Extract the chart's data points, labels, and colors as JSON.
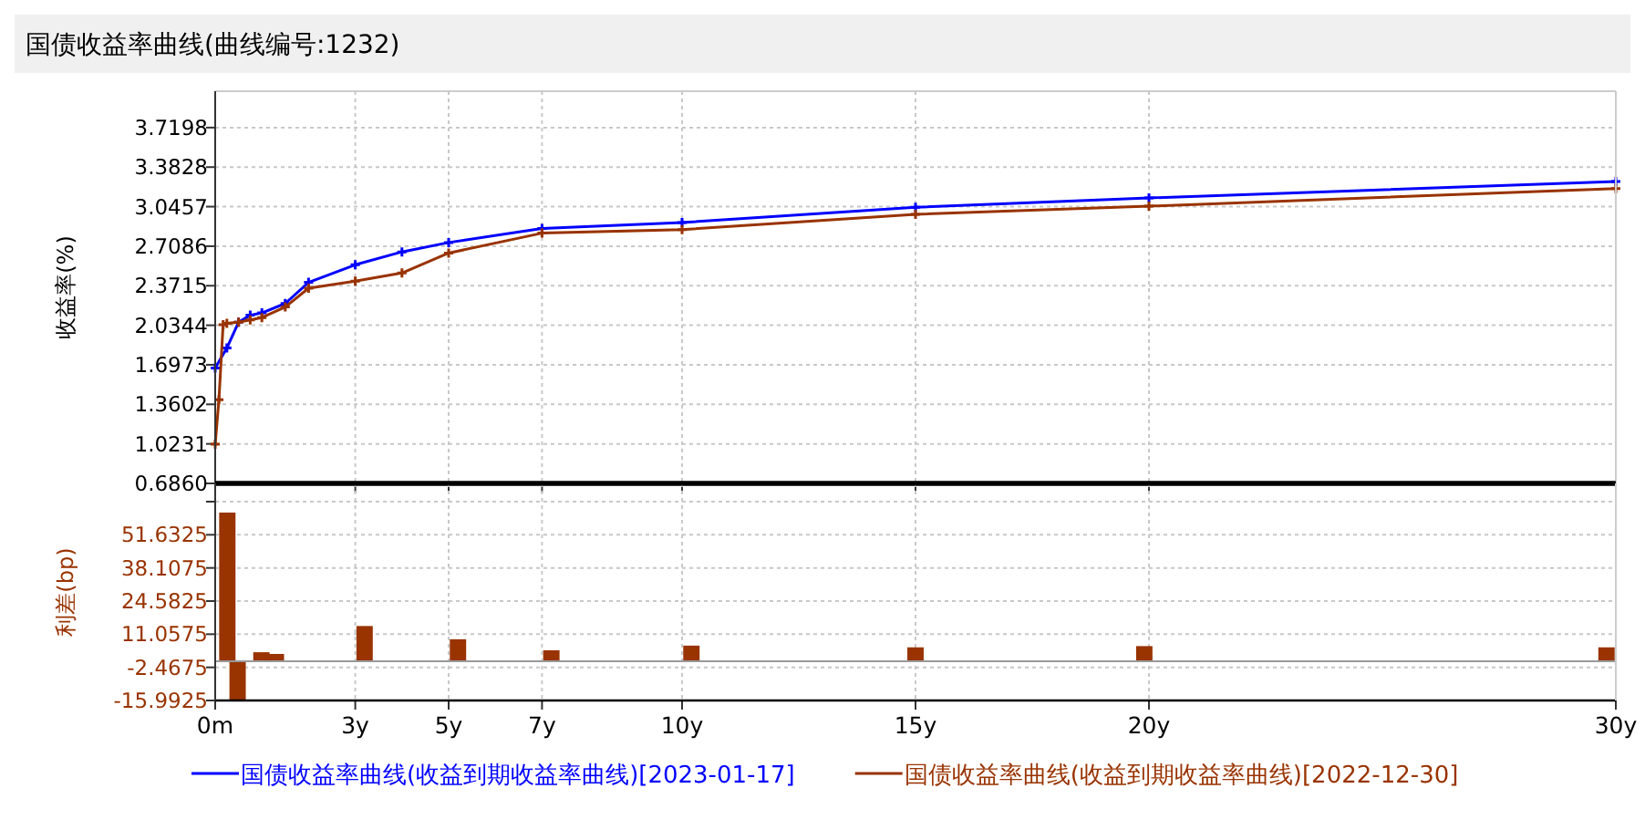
{
  "chart_data": [
    {
      "type": "line",
      "title": "国债收益率曲线(曲线编号:1232)",
      "ylabel": "收益率(%)",
      "xlim": [
        0,
        30
      ],
      "xticks": [
        {
          "value": 0,
          "label": null
        },
        {
          "value": 3,
          "label": null
        },
        {
          "value": 5,
          "label": null
        },
        {
          "value": 7,
          "label": null
        },
        {
          "value": 10,
          "label": null
        },
        {
          "value": 15,
          "label": null
        },
        {
          "value": 20,
          "label": null
        },
        {
          "value": 30,
          "label": null
        }
      ],
      "ylim": [
        0.686,
        4.03
      ],
      "yticks": [
        {
          "value": 0.686,
          "label": "0.6860"
        },
        1.0231,
        1.3602,
        1.6973,
        2.0344,
        2.3715,
        2.7086,
        3.0457,
        3.3828,
        3.7198
      ],
      "tick_labels": "y",
      "grid": true,
      "legend": "bottom",
      "marker": "cross",
      "line_style": "solid",
      "series": [
        {
          "name": "国债收益率曲线(收益到期收益率曲线)[2023-01-17]",
          "color": "#0000ff",
          "x": [
            0,
            0.25,
            0.5,
            0.75,
            1,
            1.5,
            2,
            3,
            4,
            5,
            7,
            10,
            15,
            20,
            30
          ],
          "values": [
            1.67,
            1.84,
            2.06,
            2.12,
            2.14,
            2.22,
            2.4,
            2.55,
            2.66,
            2.74,
            2.86,
            2.91,
            3.04,
            3.12,
            3.26
          ]
        },
        {
          "name": "国债收益率曲线(收益到期收益率曲线)[2022-12-30]",
          "color": "#993300",
          "x": [
            0,
            0.08,
            0.17,
            0.25,
            0.5,
            0.75,
            1,
            1.5,
            2,
            3,
            4,
            5,
            7,
            10,
            15,
            20,
            30
          ],
          "values": [
            1.02,
            1.4,
            2.04,
            2.05,
            2.06,
            2.08,
            2.1,
            2.19,
            2.35,
            2.41,
            2.48,
            2.65,
            2.82,
            2.85,
            2.98,
            3.05,
            3.2
          ]
        }
      ]
    },
    {
      "type": "bar",
      "ylabel": "利差(bp)",
      "x": [
        0.26,
        0.48,
        0.99,
        1.3,
        3.2,
        5.2,
        7.2,
        10.2,
        15,
        19.9,
        29.8
      ],
      "xlim": [
        0,
        30
      ],
      "xticks": [
        {
          "value": 0,
          "label": "0m"
        },
        {
          "value": 3,
          "label": "3y"
        },
        {
          "value": 5,
          "label": "5y"
        },
        {
          "value": 7,
          "label": "7y"
        },
        {
          "value": 10,
          "label": "10y"
        },
        {
          "value": 15,
          "label": "15y"
        },
        {
          "value": 20,
          "label": "20y"
        },
        {
          "value": 30,
          "label": "30y"
        }
      ],
      "ylim": [
        -15.9925,
        72.6
      ],
      "yticks": [
        -15.9925,
        -2.4675,
        11.0575,
        24.5825,
        38.1075,
        51.6325,
        {
          "value": 65.1575,
          "label": null
        }
      ],
      "grid": true,
      "series": [
        {
          "color": "#993300",
          "values": [
            60.7,
            -15.7,
            3.7,
            3.0,
            14.4,
            9.0,
            4.5,
            6.4,
            5.7,
            6.2,
            5.7
          ]
        }
      ]
    }
  ]
}
